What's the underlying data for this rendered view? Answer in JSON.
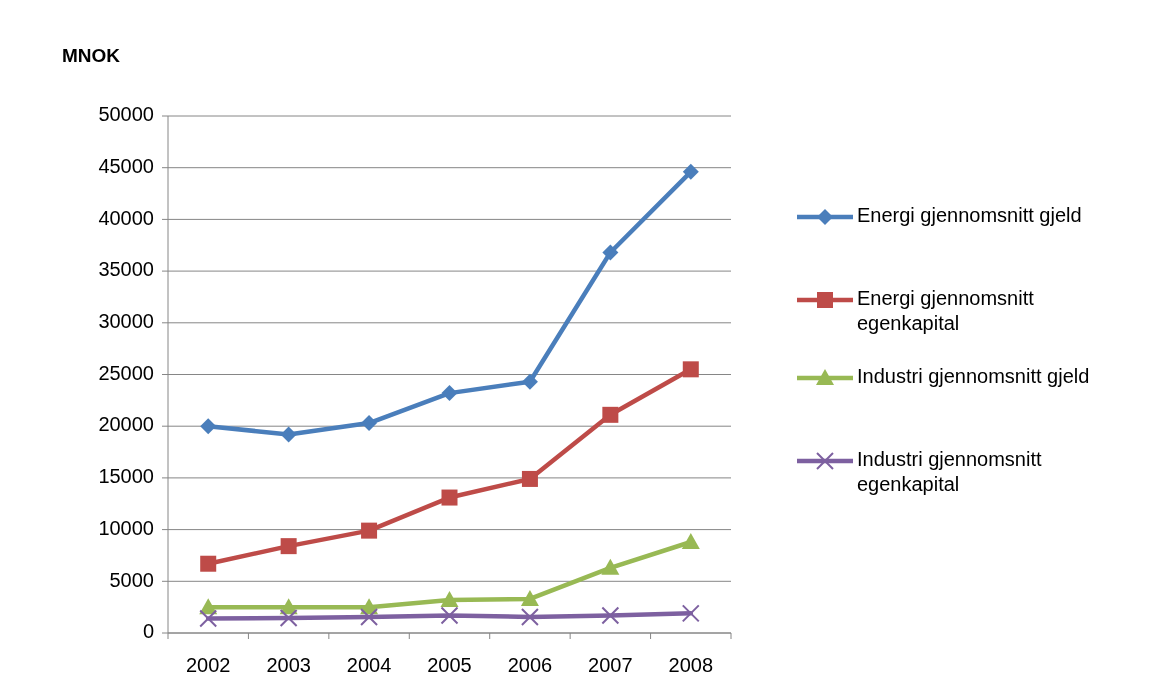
{
  "chart_data": {
    "type": "line",
    "ylabel": "MNOK",
    "categories": [
      "2002",
      "2003",
      "2004",
      "2005",
      "2006",
      "2007",
      "2008"
    ],
    "ylim": [
      0,
      50000
    ],
    "yticks": [
      0,
      5000,
      10000,
      15000,
      20000,
      25000,
      30000,
      35000,
      40000,
      45000,
      50000
    ],
    "grid": "y",
    "legend": "right",
    "series": [
      {
        "name": "Energi gjennomsnitt gjeld",
        "color": "#4a7ebb",
        "marker": "diamond",
        "values": [
          20000,
          19200,
          20300,
          23200,
          24300,
          36800,
          44600
        ]
      },
      {
        "name": "Energi gjennomsnitt egenkapital",
        "color": "#be4b48",
        "marker": "square",
        "values": [
          6700,
          8400,
          9900,
          13100,
          14900,
          21100,
          25500
        ]
      },
      {
        "name": "Industri gjennomsnitt gjeld",
        "color": "#98b954",
        "marker": "triangle",
        "values": [
          2500,
          2500,
          2500,
          3200,
          3300,
          6300,
          8800
        ]
      },
      {
        "name": "Industri gjennomsnitt egenkapital",
        "color": "#7d60a0",
        "marker": "cross",
        "values": [
          1400,
          1450,
          1550,
          1700,
          1550,
          1700,
          1900
        ]
      }
    ]
  }
}
